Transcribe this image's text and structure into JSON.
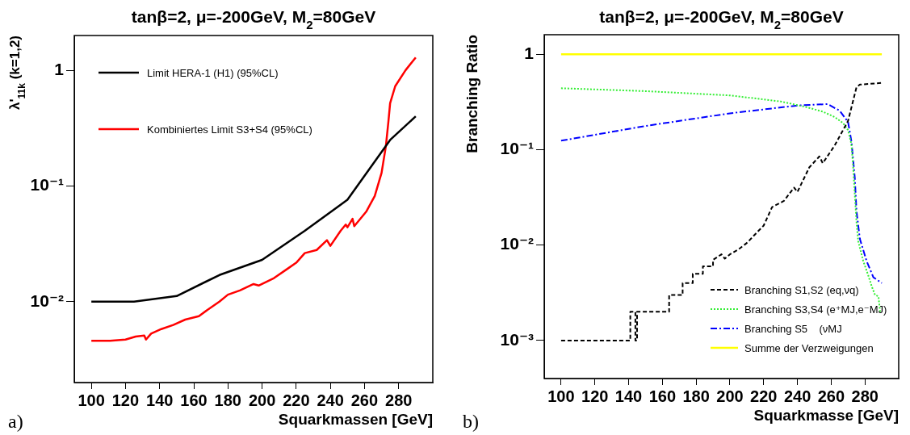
{
  "chart_data": [
    {
      "type": "line",
      "title": "tanβ=2, μ=-200GeV, M$_{2}$=80GeV",
      "xlabel": "Squarkmassen [GeV]",
      "ylabel": "λ'$_{11k}$ (k=1,2)",
      "xlim": [
        90,
        300
      ],
      "xticks": [
        100,
        120,
        140,
        160,
        180,
        200,
        220,
        240,
        260,
        280
      ],
      "ylim": [
        0.002,
        2
      ],
      "yticks": [
        {
          "value": 0.01,
          "label": "10⁻²"
        },
        {
          "value": 0.1,
          "label": "10⁻¹"
        },
        1
      ],
      "log": "y",
      "legend": "top left",
      "annotations": [
        "a)"
      ],
      "series": [
        {
          "name": "Limit HERA-1 (H1) (95%CL)",
          "color": "#000000",
          "line_style": "solid",
          "x": [
            100,
            125,
            150,
            175,
            200,
            225,
            250,
            275,
            290
          ],
          "values": [
            0.01,
            0.01,
            0.0112,
            0.017,
            0.023,
            0.041,
            0.076,
            0.25,
            0.4
          ]
        },
        {
          "name": "Kombiniertes Limit S3+S4 (95%CL)",
          "color": "#ff0000",
          "line_style": "solid",
          "x": [
            100,
            111,
            120,
            126,
            131,
            132,
            135,
            141,
            148,
            155,
            163,
            168,
            175,
            180,
            187,
            195,
            198,
            207,
            215,
            220,
            225,
            232,
            238,
            240,
            246,
            249,
            250,
            253,
            254,
            261,
            266,
            270,
            272.5,
            274,
            275,
            278,
            284,
            290
          ],
          "values": [
            0.0046,
            0.0046,
            0.0047,
            0.005,
            0.0051,
            0.0047,
            0.0053,
            0.0058,
            0.0063,
            0.007,
            0.0075,
            0.0085,
            0.01,
            0.0115,
            0.0125,
            0.0142,
            0.0138,
            0.016,
            0.0193,
            0.0217,
            0.0263,
            0.028,
            0.034,
            0.0304,
            0.041,
            0.0464,
            0.044,
            0.052,
            0.045,
            0.06,
            0.082,
            0.13,
            0.22,
            0.36,
            0.52,
            0.73,
            1,
            1.29
          ]
        }
      ]
    },
    {
      "type": "line",
      "title": "tanβ=2, μ=-200GeV, M$_{2}$=80GeV",
      "xlabel": "Squarkmasse [GeV]",
      "ylabel": "Branching Ratio",
      "xlim": [
        90,
        300
      ],
      "xticks": [
        100,
        120,
        140,
        160,
        180,
        200,
        220,
        240,
        260,
        280
      ],
      "ylim": [
        0.0004,
        1.6
      ],
      "yticks": [
        {
          "value": 0.001,
          "label": "10⁻³"
        },
        {
          "value": 0.01,
          "label": "10⁻²"
        },
        {
          "value": 0.1,
          "label": "10⁻¹"
        },
        1
      ],
      "log": "y",
      "legend": "bottom right",
      "annotations": [
        "b)"
      ],
      "series": [
        {
          "name": "Branching S1,S2 (eq,νq)",
          "color": "#000000",
          "line_style": "dashed",
          "x": [
            100,
            141,
            141,
            144,
            144,
            145,
            145,
            164,
            164,
            172,
            172,
            178,
            178,
            184,
            184,
            190,
            190,
            195,
            197,
            200,
            205,
            210,
            215,
            220,
            225,
            232,
            238,
            240,
            247,
            253,
            255,
            262,
            270,
            275,
            277,
            290
          ],
          "values": [
            0.001,
            0.001,
            0.002,
            0.002,
            0.001,
            0.001,
            0.002,
            0.002,
            0.003,
            0.003,
            0.004,
            0.004,
            0.005,
            0.005,
            0.006,
            0.006,
            0.007,
            0.008,
            0.0072,
            0.008,
            0.009,
            0.0105,
            0.013,
            0.016,
            0.025,
            0.029,
            0.04,
            0.036,
            0.065,
            0.085,
            0.072,
            0.11,
            0.2,
            0.45,
            0.48,
            0.5
          ]
        },
        {
          "name": "Branching S3,S4 (e⁺MJ,e⁻MJ)",
          "color": "#33ee33",
          "line_style": "dotted",
          "x": [
            100,
            150,
            200,
            230,
            245,
            255,
            262,
            267,
            270,
            272,
            273,
            274,
            275,
            276,
            279,
            282,
            284,
            286,
            288,
            289
          ],
          "values": [
            0.44,
            0.41,
            0.37,
            0.32,
            0.28,
            0.25,
            0.22,
            0.19,
            0.16,
            0.114,
            0.067,
            0.034,
            0.0175,
            0.011,
            0.0068,
            0.0048,
            0.0037,
            0.003,
            0.0029,
            0.002
          ]
        },
        {
          "name": "Branching S5    (νMJ",
          "color": "#0000ff",
          "line_style": "dashdot",
          "x": [
            100,
            150,
            200,
            240,
            258,
            265,
            270,
            272,
            274,
            275,
            277,
            281,
            285,
            290
          ],
          "values": [
            0.124,
            0.177,
            0.24,
            0.29,
            0.3,
            0.256,
            0.195,
            0.122,
            0.051,
            0.0227,
            0.0116,
            0.0068,
            0.0046,
            0.004
          ]
        },
        {
          "name": "Summe der Verzweigungen",
          "color": "#ffff00",
          "line_style": "solid",
          "x": [
            100,
            290
          ],
          "values": [
            1,
            1
          ]
        }
      ]
    }
  ]
}
